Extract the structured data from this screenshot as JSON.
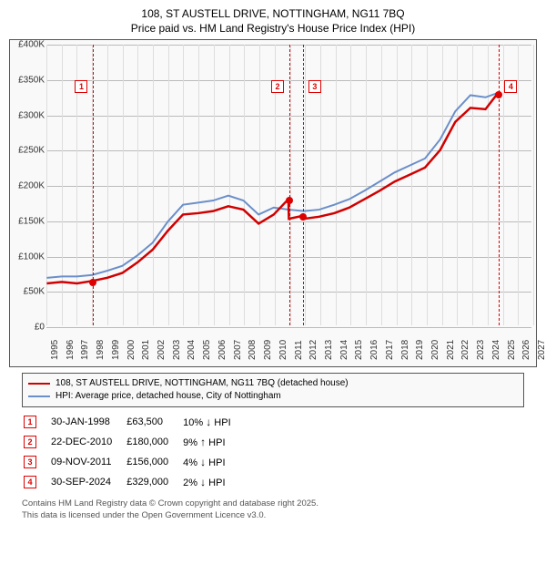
{
  "title_line1": "108, ST AUSTELL DRIVE, NOTTINGHAM, NG11 7BQ",
  "title_line2": "Price paid vs. HM Land Registry's House Price Index (HPI)",
  "chart": {
    "background": "#f9f9fa",
    "plot_bg": "#ffffff",
    "border_color": "#555555",
    "grid_color": "#bbbbbb",
    "x_min_year": 1995,
    "x_max_year": 2027,
    "y_min": 0,
    "y_max": 400000,
    "y_ticks": [
      0,
      50000,
      100000,
      150000,
      200000,
      250000,
      300000,
      350000,
      400000
    ],
    "y_tick_labels": [
      "£0",
      "£50K",
      "£100K",
      "£150K",
      "£200K",
      "£250K",
      "£300K",
      "£350K",
      "£400K"
    ],
    "x_ticks": [
      1995,
      1996,
      1997,
      1998,
      1999,
      2000,
      2001,
      2002,
      2003,
      2004,
      2005,
      2006,
      2007,
      2008,
      2009,
      2010,
      2011,
      2012,
      2013,
      2014,
      2015,
      2016,
      2017,
      2018,
      2019,
      2020,
      2021,
      2022,
      2023,
      2024,
      2025,
      2026,
      2027
    ],
    "line_red": {
      "color": "#d00000",
      "width": 2.5,
      "points": [
        [
          1995,
          60000
        ],
        [
          1996,
          62000
        ],
        [
          1997,
          60000
        ],
        [
          1998,
          63500
        ],
        [
          1999,
          68000
        ],
        [
          2000,
          75000
        ],
        [
          2001,
          90000
        ],
        [
          2002,
          108000
        ],
        [
          2003,
          135000
        ],
        [
          2004,
          158000
        ],
        [
          2005,
          160000
        ],
        [
          2006,
          163000
        ],
        [
          2007,
          170000
        ],
        [
          2008,
          165000
        ],
        [
          2009,
          145000
        ],
        [
          2010,
          158000
        ],
        [
          2010.97,
          180000
        ],
        [
          2011,
          152000
        ],
        [
          2011.86,
          156000
        ],
        [
          2012,
          152000
        ],
        [
          2013,
          155000
        ],
        [
          2014,
          160000
        ],
        [
          2015,
          168000
        ],
        [
          2016,
          180000
        ],
        [
          2017,
          192000
        ],
        [
          2018,
          205000
        ],
        [
          2019,
          215000
        ],
        [
          2020,
          225000
        ],
        [
          2021,
          250000
        ],
        [
          2022,
          290000
        ],
        [
          2023,
          310000
        ],
        [
          2024,
          308000
        ],
        [
          2024.75,
          329000
        ]
      ]
    },
    "line_blue": {
      "color": "#6b8fc9",
      "width": 2,
      "points": [
        [
          1995,
          68000
        ],
        [
          1996,
          70000
        ],
        [
          1997,
          70000
        ],
        [
          1998,
          72000
        ],
        [
          1999,
          78000
        ],
        [
          2000,
          85000
        ],
        [
          2001,
          100000
        ],
        [
          2002,
          118000
        ],
        [
          2003,
          148000
        ],
        [
          2004,
          172000
        ],
        [
          2005,
          175000
        ],
        [
          2006,
          178000
        ],
        [
          2007,
          185000
        ],
        [
          2008,
          178000
        ],
        [
          2009,
          158000
        ],
        [
          2010,
          168000
        ],
        [
          2011,
          165000
        ],
        [
          2012,
          163000
        ],
        [
          2013,
          165000
        ],
        [
          2014,
          172000
        ],
        [
          2015,
          180000
        ],
        [
          2016,
          192000
        ],
        [
          2017,
          205000
        ],
        [
          2018,
          218000
        ],
        [
          2019,
          228000
        ],
        [
          2020,
          238000
        ],
        [
          2021,
          265000
        ],
        [
          2022,
          305000
        ],
        [
          2023,
          328000
        ],
        [
          2024,
          325000
        ],
        [
          2024.9,
          332000
        ]
      ]
    },
    "sale_markers": [
      {
        "n": "1",
        "year": 1998.08,
        "price": 63500,
        "label_y": 350000
      },
      {
        "n": "2",
        "year": 2010.97,
        "price": 180000,
        "label_y": 350000
      },
      {
        "n": "3",
        "year": 2011.86,
        "price": 156000,
        "label_y": 350000
      },
      {
        "n": "4",
        "year": 2024.75,
        "price": 329000,
        "label_y": 350000
      }
    ],
    "marker_color": "#d00000"
  },
  "legend": {
    "red_label": "108, ST AUSTELL DRIVE, NOTTINGHAM, NG11 7BQ (detached house)",
    "blue_label": "HPI: Average price, detached house, City of Nottingham",
    "red_color": "#d00000",
    "blue_color": "#6b8fc9"
  },
  "sales": [
    {
      "n": "1",
      "date": "30-JAN-1998",
      "price": "£63,500",
      "pct": "10%",
      "dir": "↓",
      "suffix": "HPI"
    },
    {
      "n": "2",
      "date": "22-DEC-2010",
      "price": "£180,000",
      "pct": "9%",
      "dir": "↑",
      "suffix": "HPI"
    },
    {
      "n": "3",
      "date": "09-NOV-2011",
      "price": "£156,000",
      "pct": "4%",
      "dir": "↓",
      "suffix": "HPI"
    },
    {
      "n": "4",
      "date": "30-SEP-2024",
      "price": "£329,000",
      "pct": "2%",
      "dir": "↓",
      "suffix": "HPI"
    }
  ],
  "footnote_line1": "Contains HM Land Registry data © Crown copyright and database right 2025.",
  "footnote_line2": "This data is licensed under the Open Government Licence v3.0."
}
